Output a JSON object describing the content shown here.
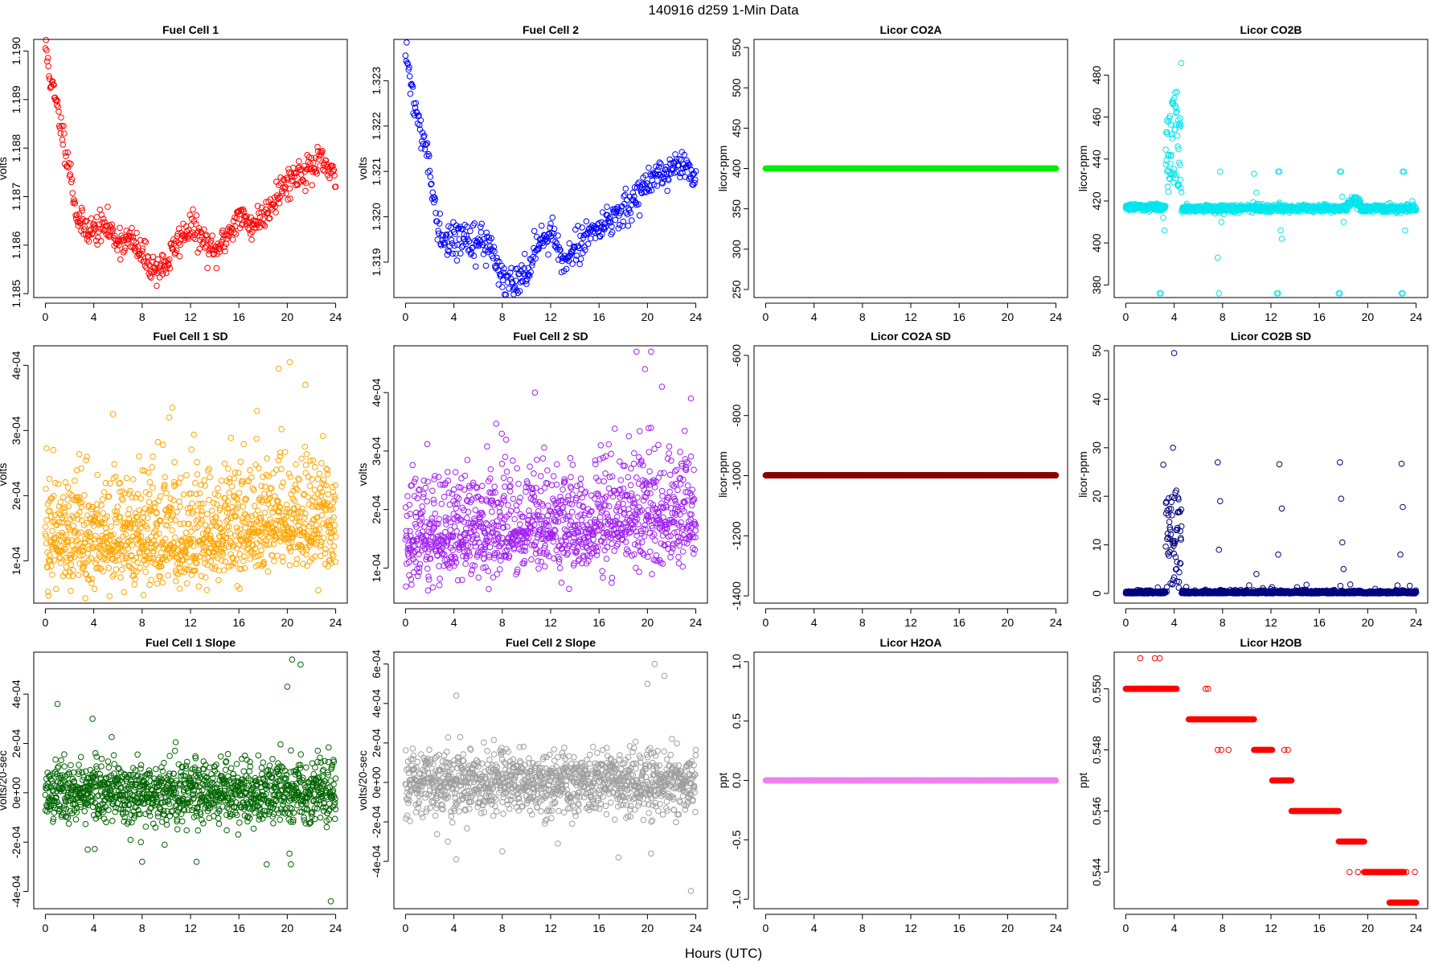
{
  "figure": {
    "title": "140916   d259   1-Min Data",
    "xlabel": "Hours (UTC)"
  },
  "chart_data": [
    {
      "type": "scatter",
      "title": "Fuel Cell 1",
      "ylabel": "volts",
      "color": "#ff0000",
      "xlim": [
        -0.96,
        24.96
      ],
      "ylim": [
        1.18492,
        1.19024
      ],
      "xticks": [
        0,
        4,
        8,
        12,
        16,
        20,
        24
      ],
      "yticks": [
        1.185,
        1.186,
        1.187,
        1.188,
        1.189,
        1.19
      ],
      "ytick_labels": [
        "1.185",
        "1.186",
        "1.187",
        "1.188",
        "1.189",
        "1.190"
      ],
      "gen": {
        "kind": "walk",
        "x0": 0,
        "x1": 24,
        "step": 0.05,
        "pts": [
          [
            0,
            1.1901
          ],
          [
            0.5,
            1.1893
          ],
          [
            1,
            1.1888
          ],
          [
            2,
            1.1876
          ],
          [
            2.6,
            1.1866
          ],
          [
            3,
            1.1864
          ],
          [
            4,
            1.1863
          ],
          [
            5,
            1.1864
          ],
          [
            6,
            1.1861
          ],
          [
            7,
            1.1861
          ],
          [
            8,
            1.1858
          ],
          [
            9,
            1.1855
          ],
          [
            10,
            1.1856
          ],
          [
            11,
            1.1861
          ],
          [
            12,
            1.1864
          ],
          [
            13,
            1.1861
          ],
          [
            14,
            1.1858
          ],
          [
            15,
            1.1862
          ],
          [
            16,
            1.1866
          ],
          [
            17,
            1.1864
          ],
          [
            18,
            1.1866
          ],
          [
            19,
            1.187
          ],
          [
            20,
            1.1873
          ],
          [
            21,
            1.1875
          ],
          [
            22,
            1.1876
          ],
          [
            23,
            1.1877
          ],
          [
            24,
            1.1873
          ]
        ],
        "noise": 0.00016,
        "seed": 11
      }
    },
    {
      "type": "scatter",
      "title": "Fuel Cell 2",
      "ylabel": "volts",
      "color": "#0000ff",
      "xlim": [
        -0.96,
        24.96
      ],
      "ylim": [
        1.31822,
        1.32391
      ],
      "xticks": [
        0,
        4,
        8,
        12,
        16,
        20,
        24
      ],
      "yticks": [
        1.319,
        1.32,
        1.321,
        1.322,
        1.323
      ],
      "ytick_labels": [
        "1.319",
        "1.320",
        "1.321",
        "1.322",
        "1.323"
      ],
      "gen": {
        "kind": "walk",
        "x0": 0,
        "x1": 24,
        "step": 0.05,
        "pts": [
          [
            0,
            1.3236
          ],
          [
            0.5,
            1.3228
          ],
          [
            1,
            1.3222
          ],
          [
            2,
            1.321
          ],
          [
            2.6,
            1.3198
          ],
          [
            3,
            1.3195
          ],
          [
            4,
            1.3195
          ],
          [
            5,
            1.3196
          ],
          [
            6,
            1.3194
          ],
          [
            7,
            1.3194
          ],
          [
            8,
            1.3186
          ],
          [
            9,
            1.3184
          ],
          [
            10,
            1.3188
          ],
          [
            11,
            1.3195
          ],
          [
            12,
            1.3197
          ],
          [
            13,
            1.319
          ],
          [
            14,
            1.3193
          ],
          [
            15,
            1.3196
          ],
          [
            16,
            1.3198
          ],
          [
            17,
            1.3199
          ],
          [
            18,
            1.3201
          ],
          [
            19,
            1.3204
          ],
          [
            20,
            1.3208
          ],
          [
            21,
            1.321
          ],
          [
            22,
            1.321
          ],
          [
            23,
            1.3211
          ],
          [
            24,
            1.3208
          ]
        ],
        "noise": 0.00018,
        "seed": 22
      }
    },
    {
      "type": "scatter",
      "title": "Licor CO2A",
      "ylabel": "licor-ppm",
      "color": "#00ee00",
      "xlim": [
        -0.96,
        24.96
      ],
      "ylim": [
        240,
        560
      ],
      "xticks": [
        0,
        4,
        8,
        12,
        16,
        20,
        24
      ],
      "yticks": [
        250,
        300,
        350,
        400,
        450,
        500,
        550
      ],
      "ytick_labels": [
        "250",
        "300",
        "350",
        "400",
        "450",
        "500",
        "550"
      ],
      "gen": {
        "kind": "const",
        "x0": 0,
        "x1": 24,
        "step": 0.0167,
        "y": 400
      }
    },
    {
      "type": "scatter",
      "title": "Licor CO2B",
      "ylabel": "licor-ppm",
      "color": "#00e5ee",
      "xlim": [
        -0.96,
        24.96
      ],
      "ylim": [
        374,
        497
      ],
      "xticks": [
        0,
        4,
        8,
        12,
        16,
        20,
        24
      ],
      "yticks": [
        380,
        400,
        420,
        440,
        460,
        480
      ],
      "ytick_labels": [
        "380",
        "400",
        "420",
        "440",
        "460",
        "480"
      ],
      "gen": {
        "kind": "co2b",
        "seed": 33
      }
    },
    {
      "type": "scatter",
      "title": "Fuel Cell 1 SD",
      "ylabel": "volts",
      "color": "#ffa500",
      "xlim": [
        -0.96,
        24.96
      ],
      "ylim": [
        3.5e-05,
        0.00043
      ],
      "xticks": [
        0,
        4,
        8,
        12,
        16,
        20,
        24
      ],
      "yticks": [
        0.0001,
        0.0002,
        0.0003,
        0.0004
      ],
      "ytick_labels": [
        "1e-04",
        "2e-04",
        "3e-04",
        "4e-04"
      ],
      "gen": {
        "kind": "sd",
        "x0": 0,
        "x1": 24,
        "step": 0.02,
        "pts": [
          [
            0,
            0.00013
          ],
          [
            8,
            0.00013
          ],
          [
            14,
            0.000135
          ],
          [
            18,
            0.000155
          ],
          [
            20,
            0.00016
          ],
          [
            24,
            0.000145
          ]
        ],
        "spread": 5.5e-05,
        "min": 4.2e-05,
        "outliers": [
          [
            17.5,
            0.00033
          ],
          [
            19.3,
            0.000395
          ],
          [
            20.2,
            0.000405
          ],
          [
            21.5,
            0.00037
          ],
          [
            10.5,
            0.000335
          ],
          [
            5.6,
            0.000325
          ]
        ],
        "seed": 44
      }
    },
    {
      "type": "scatter",
      "title": "Fuel Cell 2 SD",
      "ylabel": "volts",
      "color": "#a020f0",
      "xlim": [
        -0.96,
        24.96
      ],
      "ylim": [
        4e-05,
        0.00048
      ],
      "xticks": [
        0,
        4,
        8,
        12,
        16,
        20,
        24
      ],
      "yticks": [
        0.0001,
        0.0002,
        0.0003,
        0.0004
      ],
      "ytick_labels": [
        "1e-04",
        "2e-04",
        "3e-04",
        "4e-04"
      ],
      "gen": {
        "kind": "sd",
        "x0": 0,
        "x1": 24,
        "step": 0.02,
        "pts": [
          [
            0,
            0.000155
          ],
          [
            8,
            0.00016
          ],
          [
            14,
            0.00017
          ],
          [
            18,
            0.000185
          ],
          [
            20,
            0.00019
          ],
          [
            24,
            0.000175
          ]
        ],
        "spread": 6e-05,
        "min": 5e-05,
        "outliers": [
          [
            19.1,
            0.00047
          ],
          [
            19.8,
            0.00044
          ],
          [
            20.3,
            0.00047
          ],
          [
            21.2,
            0.00041
          ],
          [
            10.7,
            0.0004
          ],
          [
            23.6,
            0.00039
          ]
        ],
        "seed": 55
      }
    },
    {
      "type": "scatter",
      "title": "Licor CO2A SD",
      "ylabel": "licor-ppm",
      "color": "#8b0000",
      "xlim": [
        -0.96,
        24.96
      ],
      "ylim": [
        -1424,
        -568
      ],
      "xticks": [
        0,
        4,
        8,
        12,
        16,
        20,
        24
      ],
      "yticks": [
        -1400,
        -1200,
        -1000,
        -800,
        -600
      ],
      "ytick_labels": [
        "-1400",
        "-1200",
        "-1000",
        "-800",
        "-600"
      ],
      "gen": {
        "kind": "const",
        "x0": 0,
        "x1": 24,
        "step": 0.0167,
        "y": -999
      }
    },
    {
      "type": "scatter",
      "title": "Licor CO2B SD",
      "ylabel": "licor-ppm",
      "color": "#000080",
      "xlim": [
        -0.96,
        24.96
      ],
      "ylim": [
        -2,
        51
      ],
      "xticks": [
        0,
        4,
        8,
        12,
        16,
        20,
        24
      ],
      "yticks": [
        0,
        10,
        20,
        30,
        40,
        50
      ],
      "ytick_labels": [
        "0",
        "10",
        "20",
        "30",
        "40",
        "50"
      ],
      "gen": {
        "kind": "co2bsd",
        "seed": 66
      }
    },
    {
      "type": "scatter",
      "title": "Fuel Cell 1 Slope",
      "ylabel": "volts/20-sec",
      "color": "#006400",
      "xlim": [
        -0.96,
        24.96
      ],
      "ylim": [
        -0.00047,
        0.00057
      ],
      "xticks": [
        0,
        4,
        8,
        12,
        16,
        20,
        24
      ],
      "yticks": [
        -0.0004,
        -0.0002,
        0,
        0.0002,
        0.0004
      ],
      "ytick_labels": [
        "-4e-04",
        "-2e-04",
        "0e+00",
        "2e-04",
        "4e-04"
      ],
      "gen": {
        "kind": "slope",
        "x0": 0,
        "x1": 24,
        "step": 0.02,
        "spread": 6.5e-05,
        "outliers": [
          [
            1,
            0.00036
          ],
          [
            3.9,
            0.0003
          ],
          [
            20,
            0.00043
          ],
          [
            20.4,
            0.00054
          ],
          [
            21.1,
            0.00052
          ],
          [
            23.6,
            -0.00044
          ],
          [
            8,
            -0.00028
          ],
          [
            12.5,
            -0.00028
          ],
          [
            18.3,
            -0.00029
          ],
          [
            20.3,
            -0.00029
          ],
          [
            3.5,
            -0.00023
          ],
          [
            7.9,
            -0.0002
          ]
        ],
        "seed": 77
      }
    },
    {
      "type": "scatter",
      "title": "Fuel Cell 2 Slope",
      "ylabel": "volts/20-sec",
      "color": "#9e9e9e",
      "xlim": [
        -0.96,
        24.96
      ],
      "ylim": [
        -0.00064,
        0.00066
      ],
      "xticks": [
        0,
        4,
        8,
        12,
        16,
        20,
        24
      ],
      "yticks": [
        -0.0004,
        -0.0002,
        0,
        0.0002,
        0.0004,
        0.0006
      ],
      "ytick_labels": [
        "-4e-04",
        "-2e-04",
        "0e+00",
        "2e-04",
        "4e-04",
        "6e-04"
      ],
      "gen": {
        "kind": "slope",
        "x0": 0,
        "x1": 24,
        "step": 0.02,
        "spread": 8e-05,
        "outliers": [
          [
            4.2,
            0.00044
          ],
          [
            20,
            0.0005
          ],
          [
            20.6,
            0.0006
          ],
          [
            21.4,
            0.00054
          ],
          [
            23.6,
            -0.00055
          ],
          [
            3.5,
            -0.0003
          ],
          [
            4.2,
            -0.00039
          ],
          [
            8,
            -0.00035
          ],
          [
            12.6,
            -0.00031
          ],
          [
            17.6,
            -0.00038
          ],
          [
            20.3,
            -0.00036
          ]
        ],
        "seed": 88
      }
    },
    {
      "type": "scatter",
      "title": "Licor H2OA",
      "ylabel": "ppt",
      "color": "#ee82ee",
      "xlim": [
        -0.96,
        24.96
      ],
      "ylim": [
        -1.08,
        1.08
      ],
      "xticks": [
        0,
        4,
        8,
        12,
        16,
        20,
        24
      ],
      "yticks": [
        -1,
        -0.5,
        0,
        0.5,
        1
      ],
      "ytick_labels": [
        "-1.0",
        "-0.5",
        "0.0",
        "0.5",
        "1.0"
      ],
      "gen": {
        "kind": "const",
        "x0": 0,
        "x1": 24,
        "step": 0.0167,
        "y": 0
      }
    },
    {
      "type": "scatter",
      "title": "Licor H2OB",
      "ylabel": "ppt",
      "color": "#ff0000",
      "xlim": [
        -0.96,
        24.96
      ],
      "ylim": [
        0.5428,
        0.5512
      ],
      "xticks": [
        0,
        4,
        8,
        12,
        16,
        20,
        24
      ],
      "yticks": [
        0.544,
        0.546,
        0.548,
        0.55
      ],
      "ytick_labels": [
        "0.544",
        "0.546",
        "0.548",
        "0.550"
      ],
      "gen": {
        "kind": "steps",
        "step": 0.05,
        "segs": [
          [
            0,
            4.2,
            0.55
          ],
          [
            5.2,
            10.6,
            0.549
          ],
          [
            10.6,
            12.1,
            0.548
          ],
          [
            12.1,
            13.7,
            0.547
          ],
          [
            13.7,
            17.6,
            0.546
          ],
          [
            17.6,
            19.7,
            0.545
          ],
          [
            19.7,
            23,
            0.544
          ],
          [
            21.8,
            24,
            0.543
          ]
        ],
        "sparse": [
          [
            1.2,
            0.551
          ],
          [
            2.4,
            0.551
          ],
          [
            2.8,
            0.551
          ],
          [
            6.6,
            0.55
          ],
          [
            6.8,
            0.55
          ],
          [
            7.6,
            0.548
          ],
          [
            7.9,
            0.548
          ],
          [
            8.5,
            0.548
          ],
          [
            13.1,
            0.548
          ],
          [
            13.4,
            0.548
          ],
          [
            18.5,
            0.544
          ],
          [
            19.2,
            0.544
          ],
          [
            18.8,
            0.545
          ],
          [
            22.8,
            0.544
          ],
          [
            23.2,
            0.544
          ],
          [
            23.9,
            0.544
          ]
        ],
        "seed": 99
      }
    }
  ]
}
